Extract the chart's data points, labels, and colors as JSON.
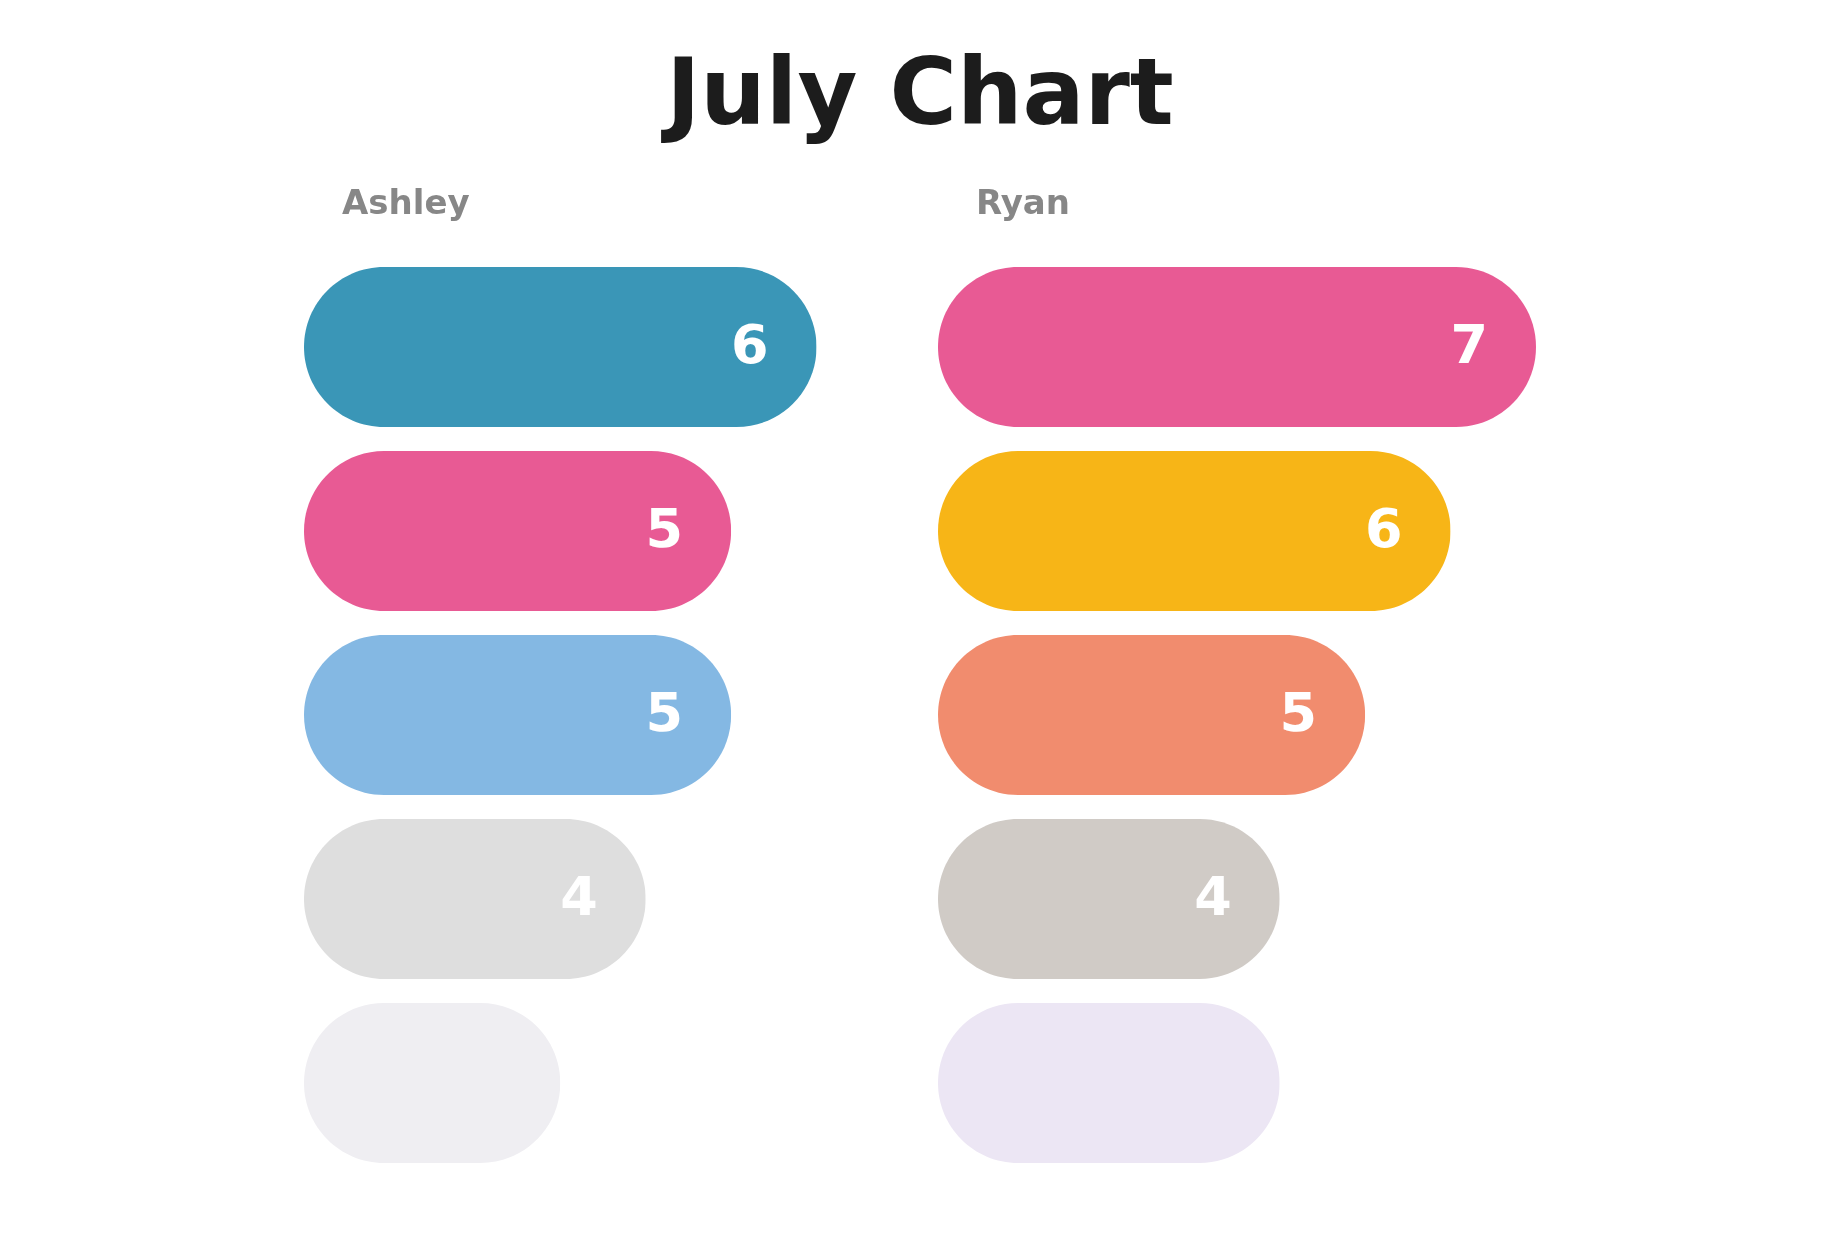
{
  "chart_data": [
    {
      "type": "other",
      "title": "July Chart"
    },
    {
      "type": "bar",
      "orientation": "horizontal",
      "title": "Ashley",
      "categories": [
        null,
        null,
        null,
        null,
        null
      ],
      "values": [
        6,
        5,
        5,
        4,
        3
      ],
      "colors": [
        "#3a96b7",
        "#e85a94",
        "#84b8e3",
        "#dedede",
        "#efeef2"
      ],
      "value_labels": [
        "6",
        "5",
        "5",
        "4",
        null
      ]
    },
    {
      "type": "bar",
      "orientation": "horizontal",
      "title": "Ryan",
      "categories": [
        null,
        null,
        null,
        null,
        null
      ],
      "values": [
        7,
        6,
        5,
        4,
        4
      ],
      "colors": [
        "#e85a94",
        "#f7b517",
        "#f18c6e",
        "#d0cbc6",
        "#ece6f4"
      ],
      "value_labels": [
        "7",
        "6",
        "5",
        "4",
        null
      ]
    }
  ]
}
